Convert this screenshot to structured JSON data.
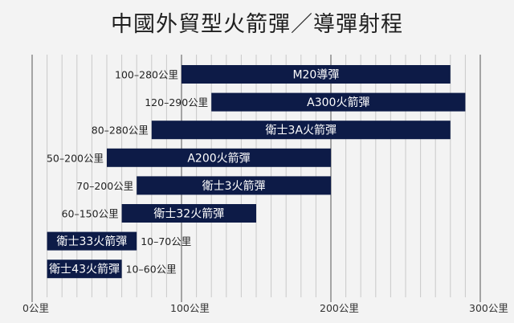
{
  "chart_data": {
    "type": "bar",
    "orientation": "horizontal-range",
    "title": "中國外貿型火箭彈／導彈射程",
    "unit": "公里",
    "xlim": [
      0,
      300
    ],
    "grid": true,
    "ticks": [
      {
        "value": 0,
        "label": "0公里"
      },
      {
        "value": 100,
        "label": "100公里"
      },
      {
        "value": 200,
        "label": "200公里"
      },
      {
        "value": 300,
        "label": "300公里"
      }
    ],
    "bars": [
      {
        "name": "M20導彈",
        "start": 100,
        "end": 280,
        "range_label": "100–280公里"
      },
      {
        "name": "A300火箭彈",
        "start": 120,
        "end": 290,
        "range_label": "120–290公里"
      },
      {
        "name": "衛士3A火箭彈",
        "start": 80,
        "end": 280,
        "range_label": "80–280公里"
      },
      {
        "name": "A200火箭彈",
        "start": 50,
        "end": 200,
        "range_label": "50–200公里"
      },
      {
        "name": "衛士3火箭彈",
        "start": 70,
        "end": 200,
        "range_label": "70–200公里"
      },
      {
        "name": "衛士32火箭彈",
        "start": 60,
        "end": 150,
        "range_label": "60–150公里"
      },
      {
        "name": "衛士33火箭彈",
        "start": 10,
        "end": 70,
        "range_label": "10–70公里"
      },
      {
        "name": "衛士43火箭彈",
        "start": 10,
        "end": 60,
        "range_label": "10–60公里"
      }
    ],
    "colors": {
      "bar": "#0d1b47",
      "grid": "#c9c9c9",
      "axis": "#7a7a7a"
    }
  }
}
